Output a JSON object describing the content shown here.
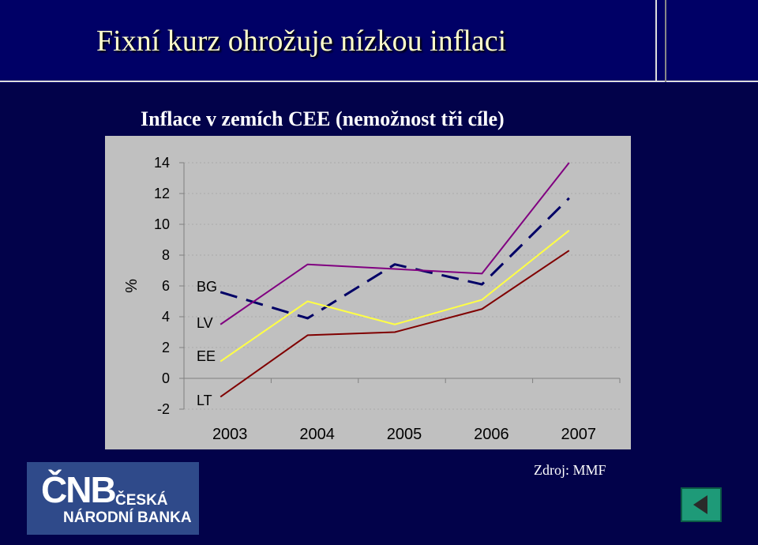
{
  "slide": {
    "title": "Fixní kurz ohrožuje nízkou inflaci",
    "source": "Zdroj: MMF"
  },
  "logo": {
    "mark": "ČNB",
    "line1": "ČESKÁ",
    "line2": "NÁRODNÍ BANKA"
  },
  "nav": {
    "icon": "back-arrow-icon"
  },
  "chart_data": {
    "type": "line",
    "title": "Inflace v zemích CEE (nemožnost tři cíle)",
    "ylabel": "%",
    "xlabel": "",
    "x": [
      "2003",
      "2004",
      "2005",
      "2006",
      "2007"
    ],
    "ylim": [
      -2,
      14
    ],
    "yticks": [
      "14",
      "12",
      "10",
      "8",
      "6",
      "4",
      "2",
      "0",
      "-2"
    ],
    "grid": true,
    "series": [
      {
        "name": "BG",
        "values": [
          5.6,
          3.9,
          7.4,
          6.1,
          11.7
        ],
        "color": "#000066",
        "dash": true
      },
      {
        "name": "LV",
        "values": [
          3.5,
          7.4,
          7.1,
          6.8,
          14.0
        ],
        "color": "#800080",
        "dash": false
      },
      {
        "name": "EE",
        "values": [
          1.1,
          5.0,
          3.5,
          5.1,
          9.6
        ],
        "color": "#ffff44",
        "dash": false
      },
      {
        "name": "LT",
        "values": [
          -1.2,
          2.8,
          3.0,
          4.5,
          8.3
        ],
        "color": "#800000",
        "dash": false
      }
    ]
  }
}
